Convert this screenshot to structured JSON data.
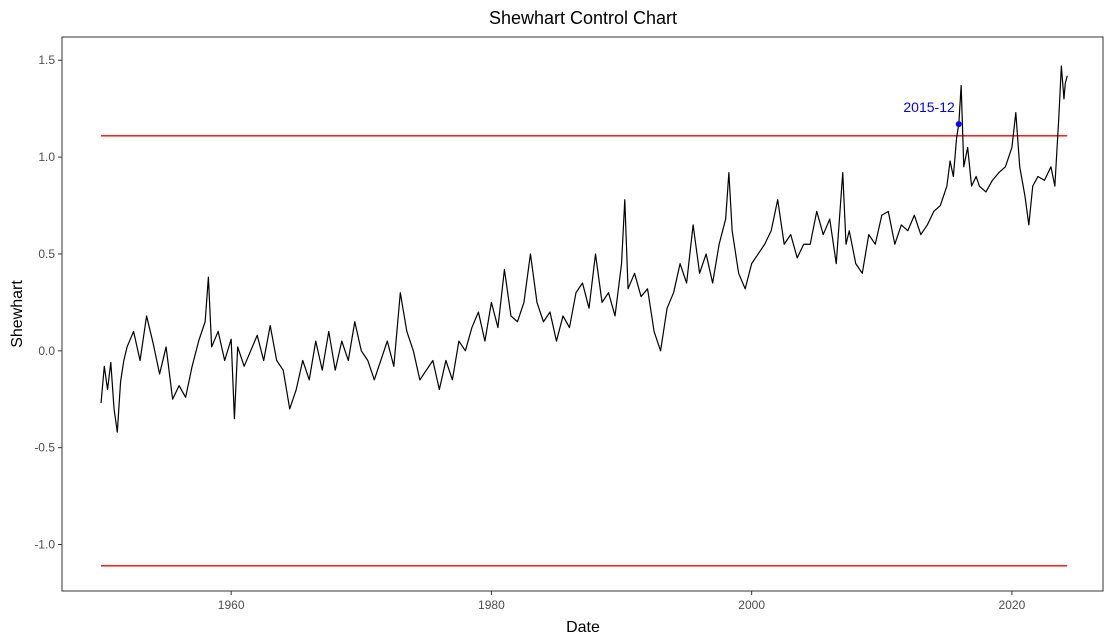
{
  "chart_data": {
    "type": "line",
    "title": "Shewhart Control Chart",
    "xlabel": "Date",
    "ylabel": "Shewhart",
    "xlim": [
      1947.0,
      2027.0
    ],
    "ylim": [
      -1.24,
      1.62
    ],
    "x_ticks": [
      1960,
      1980,
      2000,
      2020
    ],
    "x_tick_labels": [
      "1960",
      "1980",
      "2000",
      "2020"
    ],
    "y_ticks": [
      -1.0,
      -0.5,
      0.0,
      0.5,
      1.0,
      1.5
    ],
    "y_tick_labels": [
      "-1.0",
      "-0.5",
      "0.0",
      "0.5",
      "1.0",
      "1.5"
    ],
    "grid": false,
    "control_limits": {
      "upper": 1.11,
      "lower": -1.11,
      "x_range": [
        1950.0,
        2024.25
      ],
      "color": "#ff0000"
    },
    "series": [
      {
        "color": "#000000",
        "x": [
          1950.0,
          1950.25,
          1950.5,
          1950.75,
          1951.0,
          1951.25,
          1951.5,
          1951.75,
          1952.0,
          1952.5,
          1953.0,
          1953.5,
          1954.0,
          1954.5,
          1955.0,
          1955.5,
          1956.0,
          1956.5,
          1957.0,
          1957.5,
          1958.0,
          1958.25,
          1958.5,
          1959.0,
          1959.5,
          1960.0,
          1960.25,
          1960.5,
          1961.0,
          1961.5,
          1962.0,
          1962.5,
          1963.0,
          1963.5,
          1964.0,
          1964.5,
          1965.0,
          1965.5,
          1966.0,
          1966.5,
          1967.0,
          1967.5,
          1968.0,
          1968.5,
          1969.0,
          1969.5,
          1970.0,
          1970.5,
          1971.0,
          1971.5,
          1972.0,
          1972.5,
          1973.0,
          1973.5,
          1974.0,
          1974.5,
          1975.0,
          1975.5,
          1976.0,
          1976.5,
          1977.0,
          1977.5,
          1978.0,
          1978.5,
          1979.0,
          1979.5,
          1980.0,
          1980.5,
          1981.0,
          1981.5,
          1982.0,
          1982.5,
          1983.0,
          1983.5,
          1984.0,
          1984.5,
          1985.0,
          1985.5,
          1986.0,
          1986.5,
          1987.0,
          1987.5,
          1988.0,
          1988.5,
          1989.0,
          1989.5,
          1990.0,
          1990.25,
          1990.5,
          1991.0,
          1991.5,
          1992.0,
          1992.5,
          1993.0,
          1993.5,
          1994.0,
          1994.5,
          1995.0,
          1995.5,
          1996.0,
          1996.5,
          1997.0,
          1997.5,
          1998.0,
          1998.25,
          1998.5,
          1999.0,
          1999.5,
          2000.0,
          2000.5,
          2001.0,
          2001.5,
          2002.0,
          2002.5,
          2003.0,
          2003.5,
          2004.0,
          2004.5,
          2005.0,
          2005.5,
          2006.0,
          2006.5,
          2007.0,
          2007.25,
          2007.5,
          2008.0,
          2008.5,
          2009.0,
          2009.5,
          2010.0,
          2010.5,
          2011.0,
          2011.5,
          2012.0,
          2012.5,
          2013.0,
          2013.5,
          2014.0,
          2014.5,
          2015.0,
          2015.25,
          2015.5,
          2015.75,
          2015.917,
          2016.1,
          2016.3,
          2016.6,
          2016.9,
          2017.25,
          2017.5,
          2018.0,
          2018.5,
          2019.0,
          2019.5,
          2020.0,
          2020.3,
          2020.6,
          2021.0,
          2021.3,
          2021.6,
          2022.0,
          2022.5,
          2023.0,
          2023.3,
          2023.6,
          2023.8,
          2024.0,
          2024.1,
          2024.25
        ],
        "values": [
          -0.27,
          -0.08,
          -0.2,
          -0.06,
          -0.3,
          -0.42,
          -0.16,
          -0.05,
          0.02,
          0.1,
          -0.05,
          0.18,
          0.04,
          -0.12,
          0.02,
          -0.25,
          -0.18,
          -0.24,
          -0.08,
          0.05,
          0.15,
          0.38,
          0.02,
          0.1,
          -0.05,
          0.06,
          -0.35,
          0.02,
          -0.08,
          0.0,
          0.08,
          -0.05,
          0.13,
          -0.05,
          -0.1,
          -0.3,
          -0.2,
          -0.05,
          -0.15,
          0.05,
          -0.1,
          0.1,
          -0.1,
          0.05,
          -0.05,
          0.15,
          0.0,
          -0.05,
          -0.15,
          -0.05,
          0.05,
          -0.08,
          0.3,
          0.1,
          0.0,
          -0.15,
          -0.1,
          -0.05,
          -0.2,
          -0.05,
          -0.15,
          0.05,
          0.0,
          0.12,
          0.2,
          0.05,
          0.25,
          0.12,
          0.42,
          0.18,
          0.15,
          0.25,
          0.5,
          0.25,
          0.15,
          0.2,
          0.05,
          0.18,
          0.12,
          0.3,
          0.35,
          0.22,
          0.5,
          0.25,
          0.3,
          0.18,
          0.45,
          0.78,
          0.32,
          0.4,
          0.28,
          0.32,
          0.1,
          0.0,
          0.22,
          0.3,
          0.45,
          0.35,
          0.65,
          0.4,
          0.5,
          0.35,
          0.55,
          0.68,
          0.92,
          0.62,
          0.4,
          0.32,
          0.45,
          0.5,
          0.55,
          0.62,
          0.78,
          0.55,
          0.6,
          0.48,
          0.55,
          0.55,
          0.72,
          0.6,
          0.68,
          0.45,
          0.92,
          0.55,
          0.62,
          0.45,
          0.4,
          0.6,
          0.55,
          0.7,
          0.72,
          0.55,
          0.65,
          0.62,
          0.7,
          0.6,
          0.65,
          0.72,
          0.75,
          0.85,
          0.98,
          0.9,
          1.1,
          1.17,
          1.37,
          0.95,
          1.05,
          0.85,
          0.9,
          0.85,
          0.82,
          0.88,
          0.92,
          0.95,
          1.05,
          1.23,
          0.95,
          0.8,
          0.65,
          0.85,
          0.9,
          0.88,
          0.95,
          0.85,
          1.2,
          1.47,
          1.3,
          1.38,
          1.42
        ]
      }
    ],
    "highlighted_points": [
      {
        "x": 2015.917,
        "y": 1.17,
        "label": "2015-12",
        "color": "#0000ff"
      }
    ]
  }
}
